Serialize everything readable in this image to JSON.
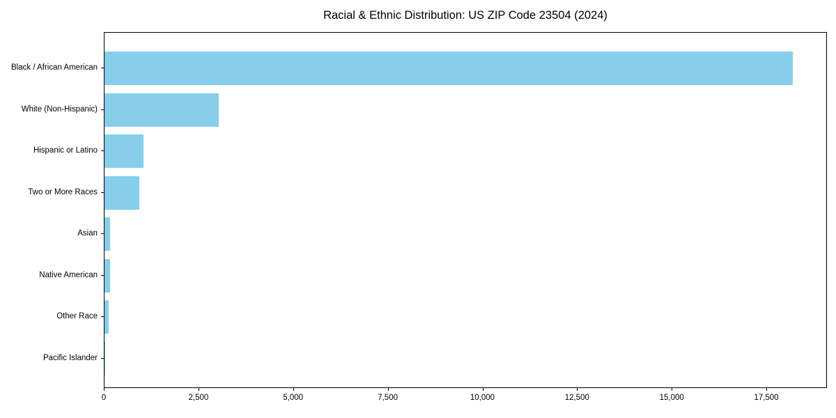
{
  "chart_data": {
    "type": "bar",
    "orientation": "horizontal",
    "title": "Racial & Ethnic Distribution: US ZIP Code 23504 (2024)",
    "xlabel": "",
    "ylabel": "",
    "categories": [
      "Black / African American",
      "White (Non-Hispanic)",
      "Hispanic or Latino",
      "Two or More Races",
      "Asian",
      "Native American",
      "Other Race",
      "Pacific Islander"
    ],
    "values": [
      18170,
      3020,
      1030,
      920,
      140,
      150,
      115,
      15
    ],
    "xlim": [
      0,
      19100
    ],
    "xticks": [
      0,
      2500,
      5000,
      7500,
      10000,
      12500,
      15000,
      17500
    ],
    "xtick_labels": [
      "0",
      "2,500",
      "5,000",
      "7,500",
      "10,000",
      "12,500",
      "15,000",
      "17,500"
    ],
    "bar_color": "#87CEEB",
    "axis_color": "#000000",
    "background_color": "#ffffff",
    "grid": false,
    "legend": null
  }
}
